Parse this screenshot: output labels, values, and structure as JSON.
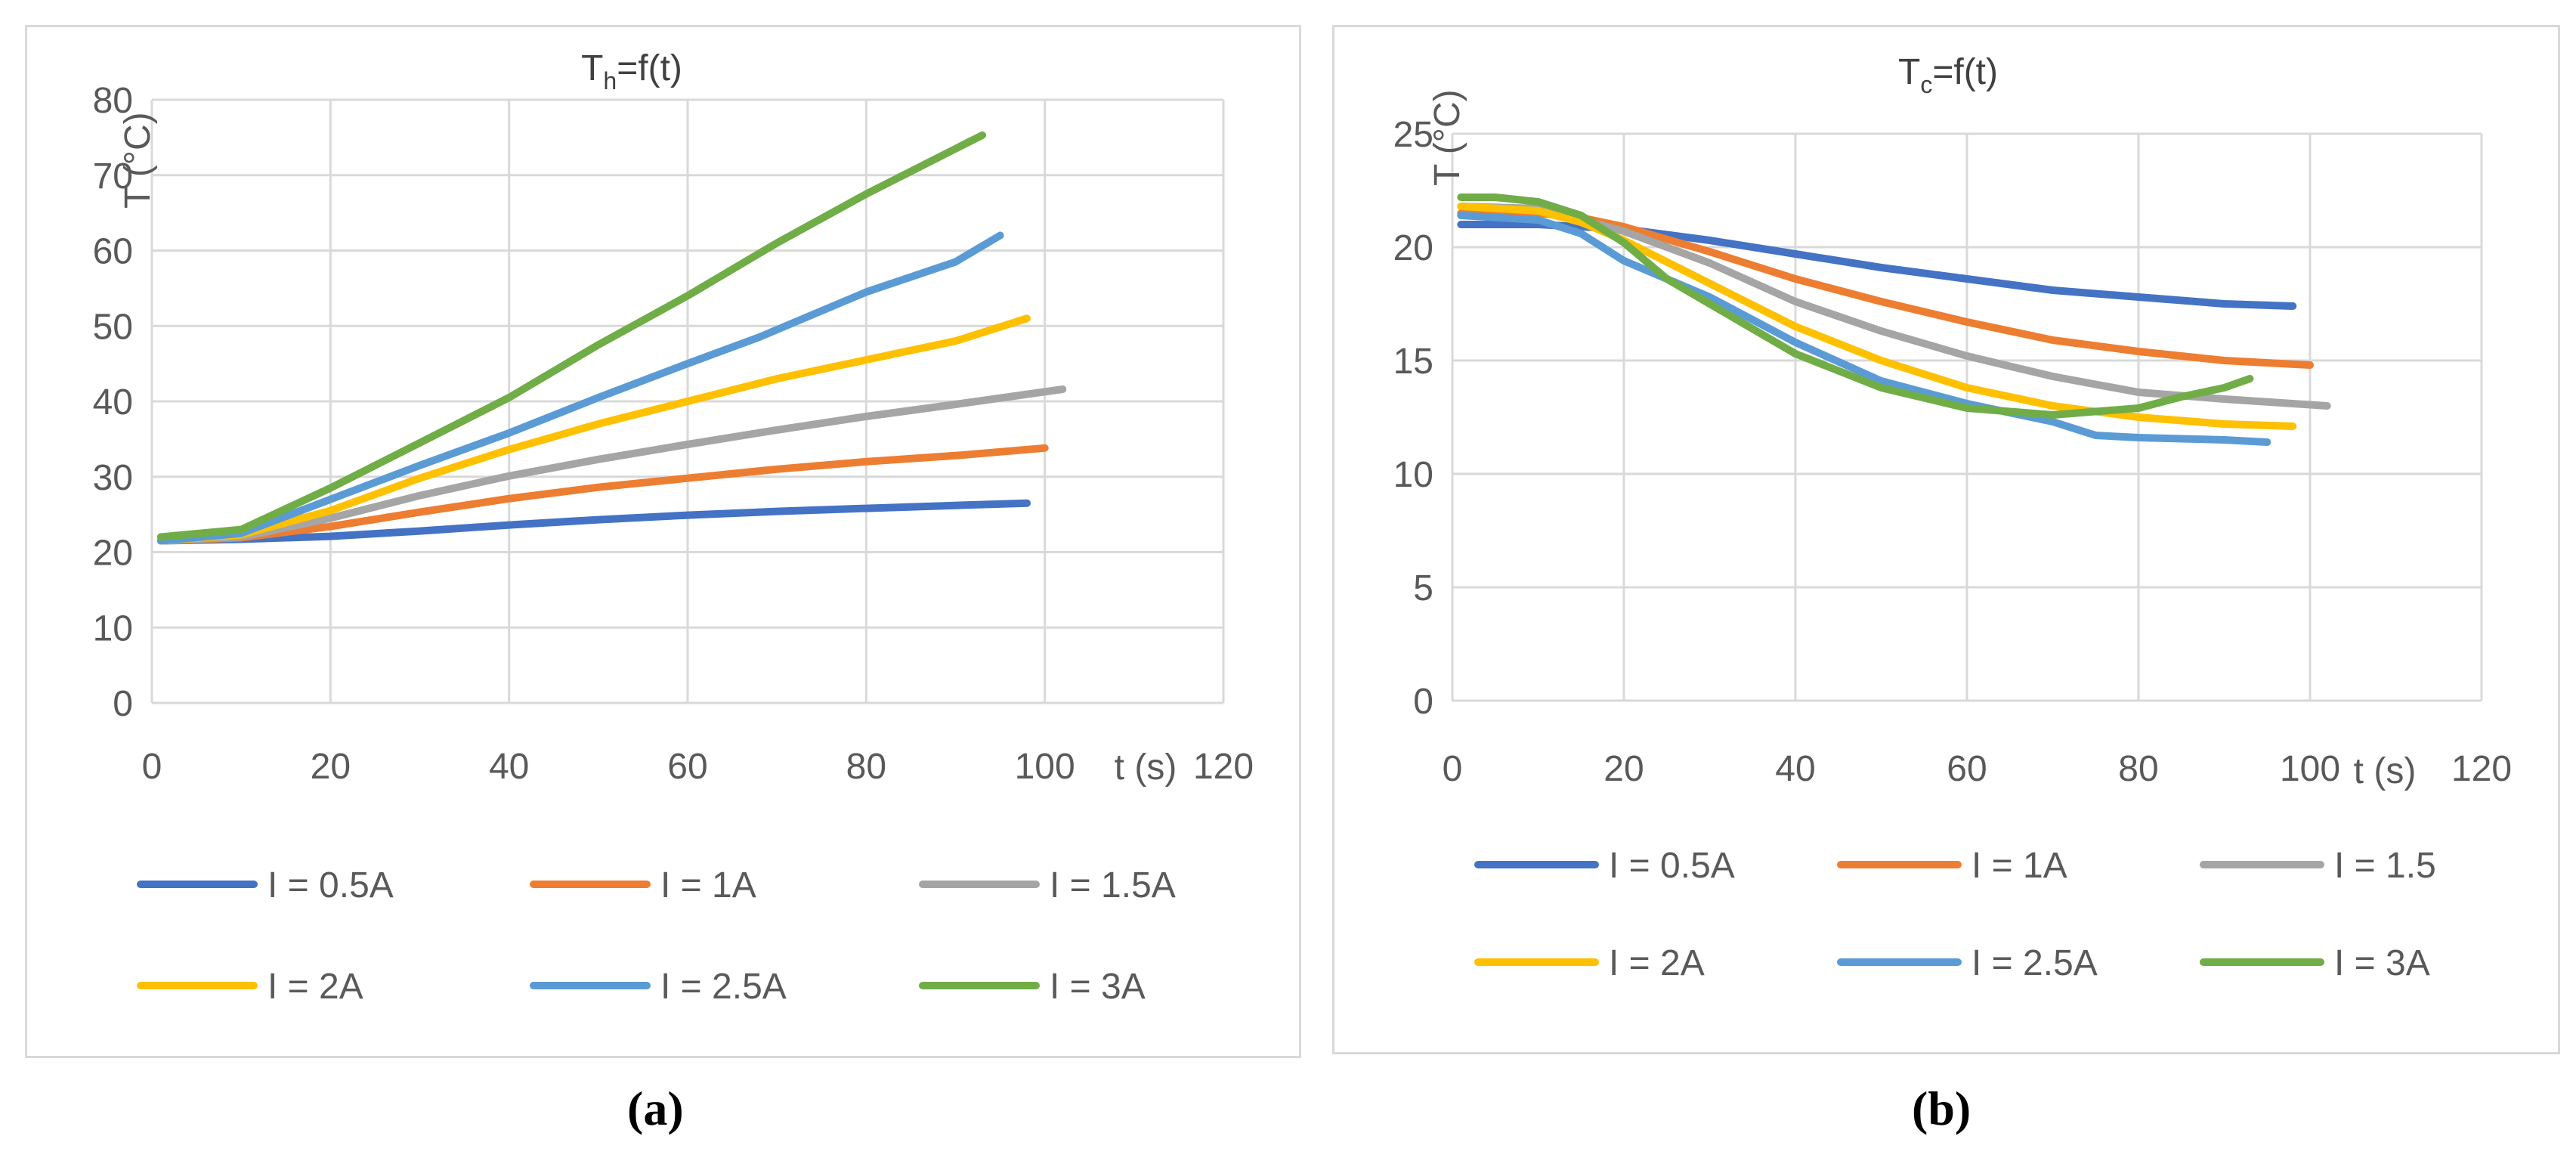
{
  "chart_data": [
    {
      "type": "line",
      "panel": "a",
      "title_main": "T",
      "title_sub": "h",
      "title_rest": "=f(t)",
      "xlabel": "t (s)",
      "ylabel": "T (°C)",
      "xlim": [
        0,
        120
      ],
      "ylim": [
        0,
        80
      ],
      "xticks": [
        0,
        20,
        40,
        60,
        80,
        100,
        120
      ],
      "yticks": [
        0,
        10,
        20,
        30,
        40,
        50,
        60,
        70,
        80
      ],
      "caption": "(a)",
      "series": [
        {
          "name": "I = 0.5A",
          "color": "#4472C4",
          "x": [
            1,
            10,
            20,
            30,
            40,
            50,
            60,
            70,
            80,
            90,
            98
          ],
          "y": [
            21.5,
            21.7,
            22.1,
            22.8,
            23.6,
            24.3,
            24.9,
            25.4,
            25.8,
            26.2,
            26.5
          ]
        },
        {
          "name": "I = 1A",
          "color": "#ED7D31",
          "x": [
            1,
            10,
            20,
            30,
            40,
            50,
            60,
            70,
            80,
            90,
            100
          ],
          "y": [
            21.5,
            21.9,
            23.4,
            25.3,
            27.1,
            28.6,
            29.8,
            31.0,
            32.0,
            32.8,
            33.8
          ]
        },
        {
          "name": "I = 1.5A",
          "color": "#A5A5A5",
          "x": [
            1,
            10,
            20,
            30,
            40,
            50,
            60,
            70,
            80,
            90,
            102
          ],
          "y": [
            21.5,
            22.0,
            24.5,
            27.5,
            30.1,
            32.3,
            34.3,
            36.2,
            38.0,
            39.6,
            41.6
          ]
        },
        {
          "name": "I = 2A",
          "color": "#FFC000",
          "x": [
            1,
            10,
            20,
            30,
            40,
            50,
            60,
            70,
            80,
            90,
            98
          ],
          "y": [
            21.5,
            22.3,
            25.5,
            29.8,
            33.6,
            37.0,
            40.0,
            43.0,
            45.5,
            48.0,
            51.0
          ]
        },
        {
          "name": "I = 2.5A",
          "color": "#5B9BD5",
          "x": [
            1,
            10,
            20,
            30,
            40,
            50,
            60,
            68,
            70,
            80,
            90,
            95
          ],
          "y": [
            21.5,
            22.5,
            27.0,
            31.5,
            35.8,
            40.5,
            45.0,
            48.5,
            49.5,
            54.5,
            58.5,
            62.0
          ]
        },
        {
          "name": "I = 3A",
          "color": "#70AD47",
          "x": [
            1,
            10,
            20,
            30,
            40,
            50,
            60,
            70,
            80,
            90,
            93
          ],
          "y": [
            22.0,
            23.0,
            28.5,
            34.5,
            40.5,
            47.5,
            54.0,
            61.0,
            67.5,
            73.5,
            75.3
          ]
        }
      ]
    },
    {
      "type": "line",
      "panel": "b",
      "title_main": "T",
      "title_sub": "c",
      "title_rest": "=f(t)",
      "xlabel": "t (s)",
      "ylabel": "T (°C)",
      "xlim": [
        0,
        120
      ],
      "ylim": [
        0,
        25
      ],
      "xticks": [
        0,
        20,
        40,
        60,
        80,
        100,
        120
      ],
      "yticks": [
        0,
        5,
        10,
        15,
        20,
        25
      ],
      "caption": "(b)",
      "series": [
        {
          "name": "I = 0.5A",
          "color": "#4472C4",
          "x": [
            1,
            10,
            20,
            30,
            40,
            50,
            60,
            70,
            80,
            90,
            98
          ],
          "y": [
            21.0,
            21.0,
            20.8,
            20.3,
            19.7,
            19.1,
            18.6,
            18.1,
            17.8,
            17.5,
            17.4
          ]
        },
        {
          "name": "I = 1A",
          "color": "#ED7D31",
          "x": [
            1,
            10,
            15,
            20,
            30,
            40,
            50,
            60,
            70,
            80,
            90,
            100
          ],
          "y": [
            21.5,
            21.5,
            21.3,
            20.9,
            19.8,
            18.6,
            17.6,
            16.7,
            15.9,
            15.4,
            15.0,
            14.8
          ]
        },
        {
          "name": "I = 1.5",
          "color": "#A5A5A5",
          "x": [
            1,
            10,
            15,
            20,
            30,
            40,
            50,
            60,
            70,
            80,
            90,
            102
          ],
          "y": [
            21.8,
            21.7,
            21.2,
            20.7,
            19.3,
            17.6,
            16.3,
            15.2,
            14.3,
            13.6,
            13.3,
            13.0
          ]
        },
        {
          "name": "I = 2A",
          "color": "#FFC000",
          "x": [
            1,
            10,
            15,
            20,
            30,
            40,
            50,
            60,
            70,
            80,
            90,
            98
          ],
          "y": [
            21.8,
            21.6,
            21.1,
            20.3,
            18.4,
            16.5,
            15.0,
            13.8,
            13.0,
            12.5,
            12.2,
            12.1
          ]
        },
        {
          "name": "I = 2.5A",
          "color": "#5B9BD5",
          "x": [
            1,
            10,
            15,
            20,
            25,
            30,
            40,
            50,
            60,
            70,
            75,
            80,
            90,
            95
          ],
          "y": [
            21.4,
            21.2,
            20.6,
            19.4,
            18.6,
            17.8,
            15.8,
            14.1,
            13.1,
            12.3,
            11.7,
            11.6,
            11.5,
            11.4
          ]
        },
        {
          "name": "I = 3A",
          "color": "#70AD47",
          "x": [
            1,
            5,
            10,
            15,
            20,
            25,
            30,
            40,
            50,
            60,
            70,
            80,
            85,
            90,
            93
          ],
          "y": [
            22.2,
            22.2,
            22.0,
            21.4,
            20.2,
            18.6,
            17.5,
            15.3,
            13.8,
            12.9,
            12.6,
            12.9,
            13.4,
            13.8,
            14.2
          ]
        }
      ]
    }
  ]
}
